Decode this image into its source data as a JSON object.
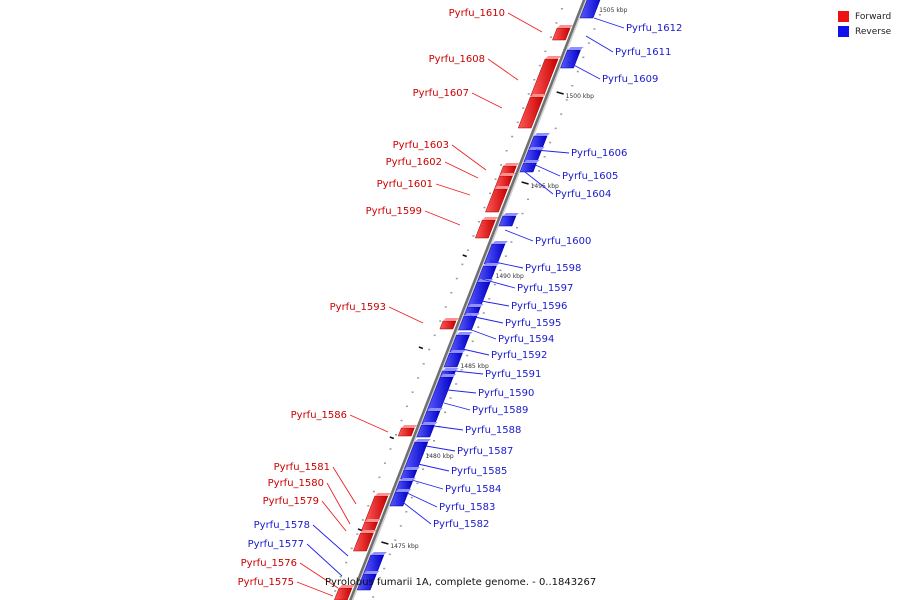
{
  "caption": "Pyrolobus fumarii 1A, complete genome. - 0..1843267",
  "legend": {
    "forward_label": "Forward",
    "reverse_label": "Reverse",
    "forward_color": "#ee1111",
    "reverse_color": "#1111ee"
  },
  "ticks": [
    "1505 kbp",
    "1500 kbp",
    "1495 kbp",
    "1490 kbp",
    "1485 kbp",
    "1480 kbp",
    "1475 kbp"
  ],
  "forward_genes": [
    "Pyrfu_1610",
    "Pyrfu_1608",
    "Pyrfu_1607",
    "Pyrfu_1603",
    "Pyrfu_1602",
    "Pyrfu_1601",
    "Pyrfu_1599",
    "Pyrfu_1593",
    "Pyrfu_1586",
    "Pyrfu_1581",
    "Pyrfu_1580",
    "Pyrfu_1579",
    "Pyrfu_1576",
    "Pyrfu_1575"
  ],
  "reverse_genes": [
    "Pyrfu_1612",
    "Pyrfu_1611",
    "Pyrfu_1609",
    "Pyrfu_1606",
    "Pyrfu_1605",
    "Pyrfu_1604",
    "Pyrfu_1600",
    "Pyrfu_1598",
    "Pyrfu_1597",
    "Pyrfu_1596",
    "Pyrfu_1595",
    "Pyrfu_1594",
    "Pyrfu_1592",
    "Pyrfu_1591",
    "Pyrfu_1590",
    "Pyrfu_1589",
    "Pyrfu_1588",
    "Pyrfu_1587",
    "Pyrfu_1585",
    "Pyrfu_1584",
    "Pyrfu_1583",
    "Pyrfu_1582",
    "Pyrfu_1578",
    "Pyrfu_1577"
  ]
}
